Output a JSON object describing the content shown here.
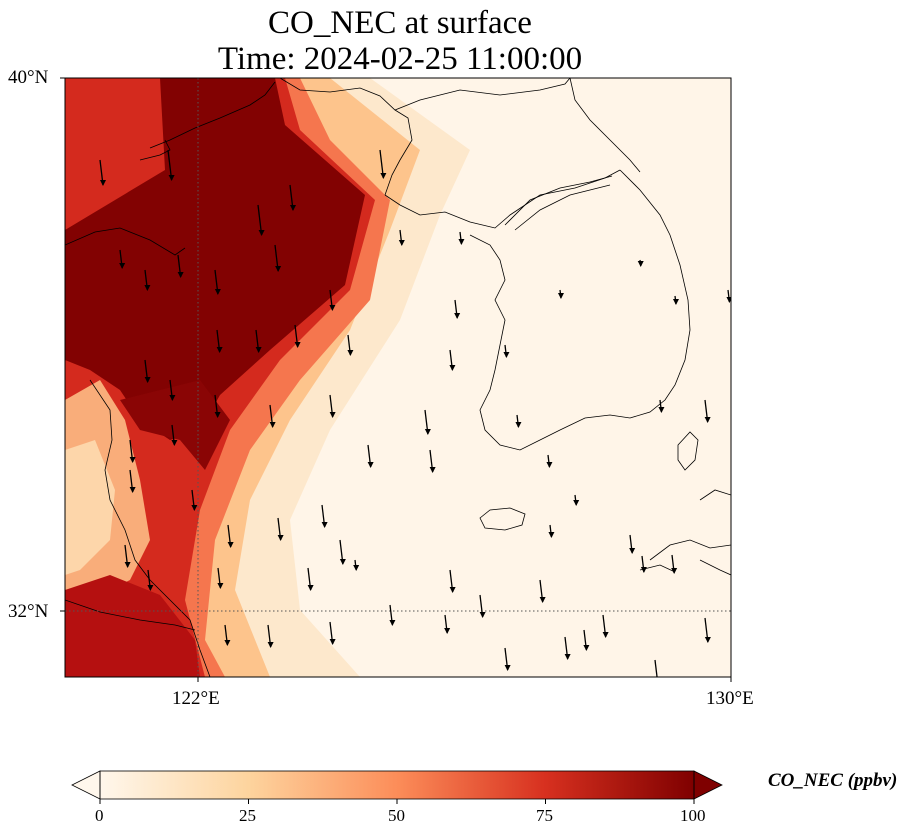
{
  "title_line1": "CO_NEC at surface",
  "title_line2": "Time: 2024-02-25 11:00:00",
  "lat_labels": [
    "40°N",
    "32°N"
  ],
  "lon_labels": [
    "122°E",
    "130°E"
  ],
  "colorbar": {
    "label": "CO_NEC (ppbv)",
    "ticks": [
      "0",
      "25",
      "50",
      "75",
      "100"
    ],
    "range": [
      0,
      100
    ],
    "extend": "both",
    "colormap": "OrRd",
    "colors": [
      "#fff7ec",
      "#fdd49e",
      "#fc8d59",
      "#d7301f",
      "#7f0000"
    ]
  },
  "map": {
    "extent": {
      "lon_min": 120,
      "lon_max": 130,
      "lat_min": 31,
      "lat_max": 40
    },
    "gridlines": [
      "122°E",
      "32°N"
    ],
    "overlay": "wind vectors (southward flow)"
  }
}
